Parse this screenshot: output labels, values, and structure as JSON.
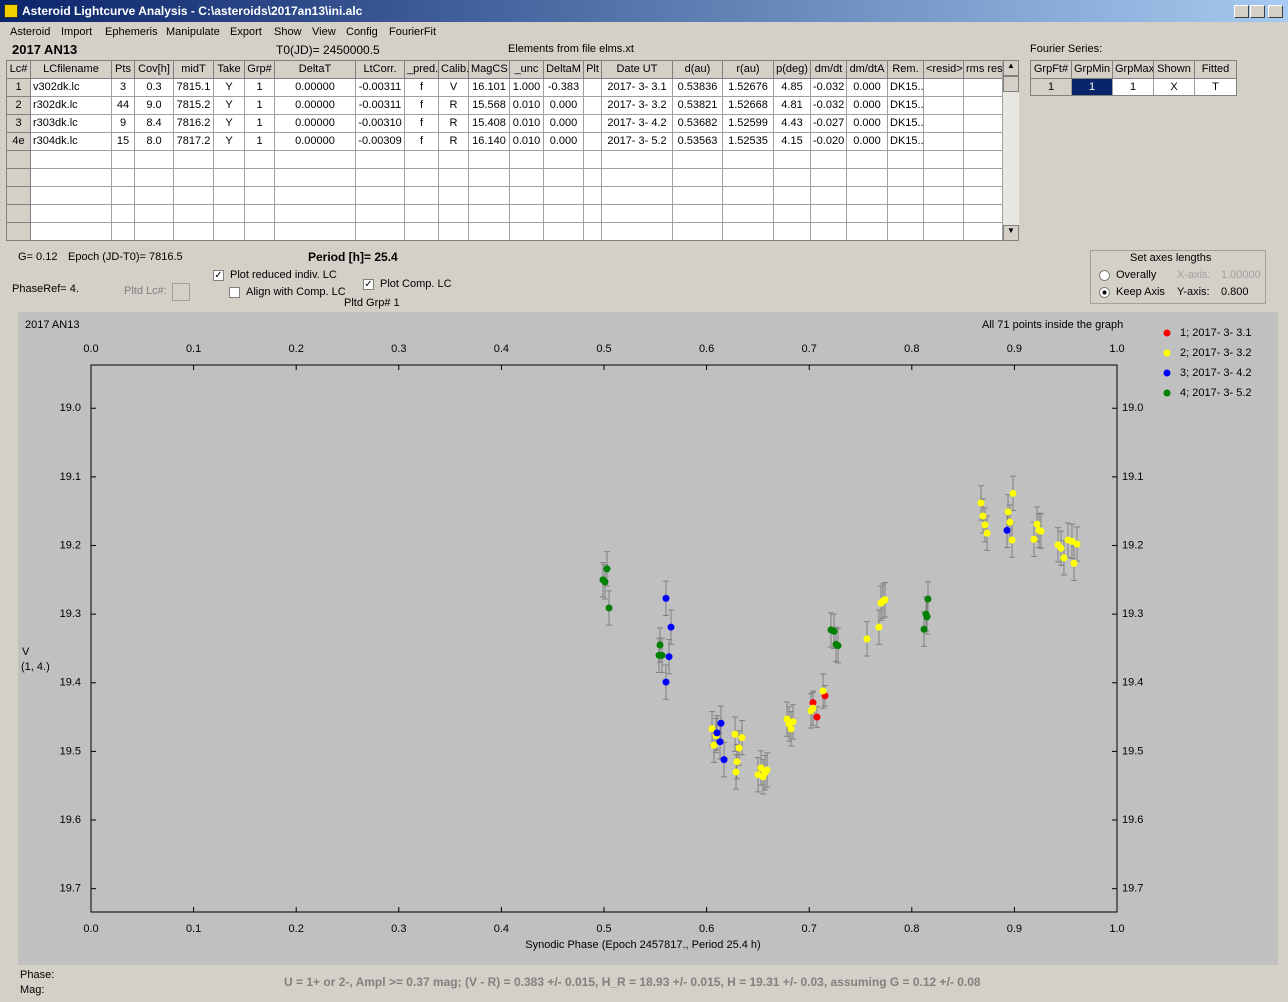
{
  "window": {
    "title": "Asteroid Lightcurve Analysis - C:\\asteroids\\2017an13\\ini.alc"
  },
  "menu": [
    "Asteroid",
    "Import",
    "Ephemeris",
    "Manipulate",
    "Export",
    "Show",
    "View",
    "Config",
    "FourierFit"
  ],
  "header": {
    "asteroid": "2017 AN13",
    "t0": "T0(JD)= 2450000.5",
    "elements": "Elements from file elms.xt",
    "fourier_label": "Fourier Series:"
  },
  "table": {
    "columns": [
      "Lc#",
      "LCfilename",
      "Pts",
      "Cov[h]",
      "midT",
      "Take",
      "Grp#",
      "DeltaT",
      "LtCorr.",
      "_pred.",
      "Calib.",
      "MagCS",
      "_unc",
      "DeltaM",
      "Plt",
      "Date UT",
      "d(au)",
      "r(au)",
      "p(deg)",
      "dm/dt",
      "dm/dtA",
      "Rem.",
      "<resid>",
      "rms res"
    ],
    "rows": [
      [
        "1",
        "v302dk.lc",
        "3",
        "0.3",
        "7815.1",
        "Y",
        "1",
        "0.00000",
        "-0.00311",
        "f",
        "V",
        "16.101",
        "1.000",
        "-0.383",
        null,
        "2017- 3- 3.1",
        "0.53836",
        "1.52676",
        "4.85",
        "-0.032",
        "0.000",
        "DK15..",
        null,
        null
      ],
      [
        "2",
        "r302dk.lc",
        "44",
        "9.0",
        "7815.2",
        "Y",
        "1",
        "0.00000",
        "-0.00311",
        "f",
        "R",
        "15.568",
        "0.010",
        "0.000",
        null,
        "2017- 3- 3.2",
        "0.53821",
        "1.52668",
        "4.81",
        "-0.032",
        "0.000",
        "DK15..",
        null,
        null
      ],
      [
        "3",
        "r303dk.lc",
        "9",
        "8.4",
        "7816.2",
        "Y",
        "1",
        "0.00000",
        "-0.00310",
        "f",
        "R",
        "15.408",
        "0.010",
        "0.000",
        null,
        "2017- 3- 4.2",
        "0.53682",
        "1.52599",
        "4.43",
        "-0.027",
        "0.000",
        "DK15..",
        null,
        null
      ],
      [
        "4e",
        "r304dk.lc",
        "15",
        "8.0",
        "7817.2",
        "Y",
        "1",
        "0.00000",
        "-0.00309",
        "f",
        "R",
        "16.140",
        "0.010",
        "0.000",
        null,
        "2017- 3- 5.2",
        "0.53563",
        "1.52535",
        "4.15",
        "-0.020",
        "0.000",
        "DK15..",
        null,
        null
      ]
    ]
  },
  "fourier": {
    "columns": [
      "GrpFt#",
      "GrpMin",
      "GrpMax",
      "Shown",
      "Fitted"
    ],
    "rows": [
      [
        "1",
        "1",
        "1",
        "X",
        "T"
      ]
    ]
  },
  "info": {
    "g": "G= 0.12",
    "epoch": "Epoch (JD-T0)= 7816.5",
    "period": "Period [h]= 25.4",
    "phase_ref": "PhaseRef= 4.",
    "pltd_lc": "Pltd Lc#:",
    "plot_reduced": "Plot reduced indiv. LC",
    "align": "Align with Comp. LC",
    "plot_comp": "Plot Comp. LC",
    "pltd_grp": "Pltd Grp#  1"
  },
  "axes_box": {
    "title": "Set axes lengths",
    "overally": "Overally",
    "keep_axis": "Keep Axis",
    "x_label": "X-axis:",
    "x_value": "1.00000",
    "y_label": "Y-axis:",
    "y_value": "0.800"
  },
  "plot": {
    "type": "scatter",
    "title": "2017 AN13",
    "annotation": "All 71 points inside the graph",
    "x_label": "Synodic Phase (Epoch 2457817., Period 25.4 h)",
    "y_label": "V",
    "y_sublabel": "(1, 4.)",
    "xlim": [
      0,
      1.0
    ],
    "ylim": [
      19.734,
      18.937
    ],
    "xticks": [
      {
        "value": 0,
        "label": "0.0"
      },
      0.1,
      0.2,
      0.3,
      0.4,
      0.5,
      0.6,
      0.7,
      0.8,
      0.9,
      {
        "value": 1.0,
        "label": "1.0"
      }
    ],
    "yticks": [
      {
        "value": 19.0,
        "label": "19.0"
      },
      19.1,
      19.2,
      19.3,
      19.4,
      19.5,
      19.6,
      19.7
    ],
    "series": [
      {
        "name": "1; 2017- 3- 3.1",
        "color": "#ff0000",
        "error": 0.015,
        "x": [
          0.7037,
          0.7076,
          0.7154
        ],
        "y": [
          19.429,
          19.45,
          19.419
        ]
      },
      {
        "name": "2; 2017- 3- 3.2",
        "color": "#ffff00",
        "error": 0.025,
        "x": [
          0.6053,
          0.6072,
          0.6092,
          0.6277,
          0.6296,
          0.6316,
          0.6345,
          0.6287,
          0.6501,
          0.653,
          0.655,
          0.6569,
          0.6589,
          0.6784,
          0.6803,
          0.6823,
          0.6842,
          0.7018,
          0.7037,
          0.7135,
          0.7563,
          0.768,
          0.77,
          0.7719,
          0.7739,
          0.8674,
          0.8694,
          0.8713,
          0.8733,
          0.8938,
          0.8957,
          0.8977,
          0.8986,
          0.9191,
          0.922,
          0.924,
          0.9259,
          0.9425,
          0.9454,
          0.9483,
          0.9522,
          0.9561,
          0.9581,
          0.961
        ],
        "y": [
          19.467,
          19.491,
          19.477,
          19.475,
          19.515,
          19.495,
          19.48,
          19.53,
          19.534,
          19.524,
          19.537,
          19.531,
          19.527,
          19.453,
          19.46,
          19.467,
          19.457,
          19.441,
          19.437,
          19.412,
          19.336,
          19.319,
          19.284,
          19.281,
          19.279,
          19.138,
          19.157,
          19.17,
          19.182,
          19.151,
          19.166,
          19.192,
          19.124,
          19.191,
          19.169,
          19.178,
          19.179,
          19.199,
          19.204,
          19.218,
          19.192,
          19.194,
          19.226,
          19.198
        ]
      },
      {
        "name": "3; 2017- 3- 4.2",
        "color": "#0000ff",
        "error": 0.025,
        "x": [
          0.5604,
          0.5653,
          0.5634,
          0.5604,
          0.6101,
          0.614,
          0.6131,
          0.617,
          0.8928
        ],
        "y": [
          19.277,
          19.319,
          19.362,
          19.399,
          19.473,
          19.459,
          19.486,
          19.512,
          19.178
        ]
      },
      {
        "name": "4; 2017- 3- 5.2",
        "color": "#008000",
        "error": 0.025,
        "x": [
          0.501,
          0.5029,
          0.5049,
          0.499,
          0.5546,
          0.5536,
          0.5565,
          0.7212,
          0.7242,
          0.7261,
          0.7281,
          0.8119,
          0.8138,
          0.8158,
          0.8148
        ],
        "y": [
          19.253,
          19.234,
          19.291,
          19.25,
          19.345,
          19.36,
          19.36,
          19.323,
          19.325,
          19.344,
          19.346,
          19.322,
          19.3,
          19.278,
          19.304
        ]
      }
    ]
  },
  "footer": {
    "phase": "Phase:",
    "mag": "Mag:",
    "summary": "U = 1+ or 2-, Ampl >= 0.37 mag; (V - R) = 0.383 +/- 0.015, H_R = 18.93 +/- 0.015, H = 19.31 +/- 0.03, assuming G = 0.12 +/- 0.08"
  }
}
